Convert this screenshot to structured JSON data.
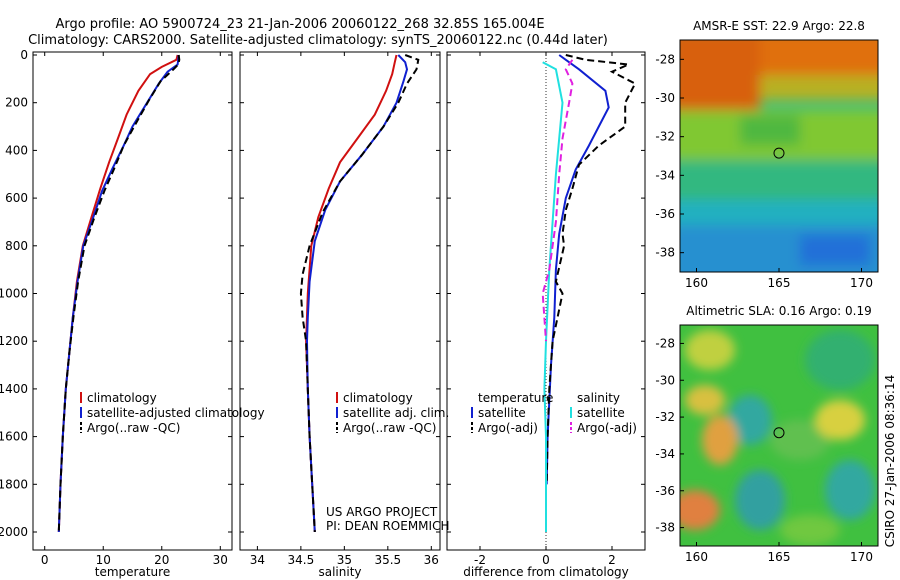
{
  "title": {
    "line1": "Argo profile: AO 5900724_23 21-Jan-2006 20060122_268 32.85S 165.004E",
    "line2": "Climatology: CARS2000. Satellite-adjusted climatology: synTS_20060122.nc (0.44d later)"
  },
  "side_label": "CSIRO 27-Jan-2006 08:36:14",
  "project_text": [
    "US ARGO PROJECT",
    "PI: DEAN ROEMMICH"
  ],
  "colors": {
    "climatology": "#d01010",
    "satellite": "#1020d0",
    "argo": "#000000",
    "cyan": "#20e0e0",
    "magenta": "#e020e0"
  },
  "chart_data": [
    {
      "type": "line",
      "xlabel": "temperature",
      "xlim": [
        -2,
        32
      ],
      "xticks": [
        0,
        10,
        20,
        30
      ],
      "ylim": [
        0,
        2050
      ],
      "yticks": [
        0,
        200,
        400,
        600,
        800,
        1000,
        1200,
        1400,
        1600,
        1800,
        2000
      ],
      "y_reversed": true,
      "legend_location": "lower-center",
      "series": [
        {
          "name": "climatology",
          "style": "solid",
          "color_key": "climatology",
          "points": [
            [
              22.7,
              0
            ],
            [
              22.5,
              20
            ],
            [
              20.0,
              50
            ],
            [
              18.0,
              80
            ],
            [
              16.0,
              150
            ],
            [
              14.0,
              250
            ],
            [
              12.5,
              350
            ],
            [
              11.0,
              450
            ],
            [
              9.5,
              560
            ],
            [
              8.0,
              680
            ],
            [
              6.5,
              800
            ],
            [
              5.5,
              950
            ],
            [
              4.8,
              1100
            ],
            [
              4.2,
              1250
            ],
            [
              3.6,
              1400
            ],
            [
              3.1,
              1600
            ],
            [
              2.7,
              1800
            ],
            [
              2.4,
              2000
            ]
          ]
        },
        {
          "name": "satellite-adjusted climatology",
          "style": "solid",
          "color_key": "satellite",
          "points": [
            [
              22.9,
              0
            ],
            [
              22.8,
              20
            ],
            [
              22.7,
              40
            ],
            [
              21.0,
              70
            ],
            [
              19.5,
              120
            ],
            [
              17.5,
              200
            ],
            [
              15.0,
              300
            ],
            [
              13.5,
              380
            ],
            [
              11.5,
              480
            ],
            [
              9.8,
              570
            ],
            [
              8.3,
              680
            ],
            [
              6.6,
              800
            ],
            [
              5.6,
              950
            ],
            [
              4.8,
              1100
            ],
            [
              4.2,
              1250
            ],
            [
              3.6,
              1400
            ],
            [
              3.1,
              1600
            ],
            [
              2.7,
              1800
            ],
            [
              2.4,
              2000
            ]
          ]
        },
        {
          "name": "Argo(..raw -QC)",
          "style": "dashed",
          "color_key": "argo",
          "points": [
            [
              22.9,
              0
            ],
            [
              23.0,
              20
            ],
            [
              22.8,
              40
            ],
            [
              22.0,
              60
            ],
            [
              19.8,
              110
            ],
            [
              17.8,
              190
            ],
            [
              15.5,
              290
            ],
            [
              13.5,
              380
            ],
            [
              11.8,
              480
            ],
            [
              10.2,
              570
            ],
            [
              8.5,
              680
            ],
            [
              6.8,
              800
            ],
            [
              5.7,
              950
            ],
            [
              4.9,
              1100
            ],
            [
              4.2,
              1250
            ],
            [
              3.6,
              1400
            ],
            [
              3.1,
              1600
            ],
            [
              2.7,
              1800
            ],
            [
              2.4,
              2000
            ]
          ]
        }
      ]
    },
    {
      "type": "line",
      "xlabel": "salinity",
      "xlim": [
        33.8,
        36.1
      ],
      "xticks": [
        34,
        34.5,
        35,
        35.5,
        36
      ],
      "ylim": [
        0,
        2050
      ],
      "y_reversed": true,
      "legend_location": "lower-center",
      "series": [
        {
          "name": "climatology",
          "style": "solid",
          "color_key": "climatology",
          "points": [
            [
              35.6,
              0
            ],
            [
              35.58,
              30
            ],
            [
              35.55,
              80
            ],
            [
              35.48,
              150
            ],
            [
              35.35,
              250
            ],
            [
              35.15,
              350
            ],
            [
              34.95,
              450
            ],
            [
              34.82,
              560
            ],
            [
              34.7,
              680
            ],
            [
              34.62,
              800
            ],
            [
              34.58,
              1000
            ],
            [
              34.56,
              1200
            ],
            [
              34.58,
              1400
            ],
            [
              34.6,
              1600
            ],
            [
              34.63,
              1800
            ],
            [
              34.66,
              2000
            ]
          ]
        },
        {
          "name": "satellite adj. clim.",
          "style": "solid",
          "color_key": "satellite",
          "points": [
            [
              35.62,
              0
            ],
            [
              35.7,
              30
            ],
            [
              35.72,
              60
            ],
            [
              35.68,
              110
            ],
            [
              35.6,
              200
            ],
            [
              35.45,
              300
            ],
            [
              35.2,
              420
            ],
            [
              34.95,
              530
            ],
            [
              34.78,
              650
            ],
            [
              34.66,
              780
            ],
            [
              34.6,
              950
            ],
            [
              34.58,
              1100
            ],
            [
              34.57,
              1200
            ],
            [
              34.58,
              1400
            ],
            [
              34.6,
              1600
            ],
            [
              34.63,
              1800
            ],
            [
              34.66,
              2000
            ]
          ]
        },
        {
          "name": "Argo(..raw -QC)",
          "style": "dashed",
          "color_key": "argo",
          "points": [
            [
              35.7,
              0
            ],
            [
              35.85,
              20
            ],
            [
              35.83,
              60
            ],
            [
              35.72,
              120
            ],
            [
              35.62,
              200
            ],
            [
              35.45,
              300
            ],
            [
              35.2,
              420
            ],
            [
              34.95,
              530
            ],
            [
              34.75,
              660
            ],
            [
              34.6,
              800
            ],
            [
              34.52,
              920
            ],
            [
              34.5,
              1000
            ],
            [
              34.52,
              1100
            ],
            [
              34.56,
              1200
            ],
            [
              34.58,
              1400
            ],
            [
              34.6,
              1600
            ],
            [
              34.63,
              1800
            ],
            [
              34.66,
              2000
            ]
          ]
        }
      ]
    },
    {
      "type": "line",
      "xlabel": "difference from climatology",
      "xlim": [
        -3,
        3
      ],
      "xticks": [
        -2,
        0,
        2
      ],
      "ylim": [
        0,
        2050
      ],
      "y_reversed": true,
      "legend_location": "lower-center",
      "legend_groups": [
        {
          "heading": "temperature",
          "entries": [
            "satellite",
            "Argo(-adj)"
          ]
        },
        {
          "heading": "salinity",
          "entries": [
            "satellite",
            "Argo(-adj)"
          ]
        }
      ],
      "series": [
        {
          "name": "satellite",
          "group": "temperature",
          "style": "solid",
          "color_key": "satellite",
          "points": [
            [
              0.4,
              0
            ],
            [
              0.6,
              20
            ],
            [
              1.0,
              60
            ],
            [
              1.8,
              150
            ],
            [
              1.9,
              220
            ],
            [
              1.6,
              300
            ],
            [
              1.3,
              380
            ],
            [
              0.9,
              480
            ],
            [
              0.6,
              600
            ],
            [
              0.4,
              750
            ],
            [
              0.3,
              900
            ],
            [
              0.25,
              1100
            ],
            [
              0.15,
              1300
            ],
            [
              0.05,
              1600
            ],
            [
              0.02,
              1800
            ]
          ]
        },
        {
          "name": "Argo(-adj)",
          "group": "temperature",
          "style": "dashed",
          "color_key": "argo",
          "points": [
            [
              0.6,
              0
            ],
            [
              1.2,
              20
            ],
            [
              2.5,
              40
            ],
            [
              2.0,
              70
            ],
            [
              2.7,
              120
            ],
            [
              2.4,
              200
            ],
            [
              2.4,
              300
            ],
            [
              1.6,
              380
            ],
            [
              1.0,
              460
            ],
            [
              0.8,
              560
            ],
            [
              0.6,
              650
            ],
            [
              0.5,
              750
            ],
            [
              0.55,
              800
            ],
            [
              0.3,
              950
            ],
            [
              0.5,
              1000
            ],
            [
              0.2,
              1200
            ],
            [
              0.1,
              1400
            ],
            [
              0.05,
              1600
            ],
            [
              0.02,
              1800
            ]
          ]
        },
        {
          "name": "satellite",
          "group": "salinity",
          "style": "solid",
          "color_key": "cyan",
          "points": [
            [
              -0.1,
              30
            ],
            [
              0.3,
              60
            ],
            [
              0.5,
              200
            ],
            [
              0.4,
              350
            ],
            [
              0.3,
              500
            ],
            [
              0.2,
              700
            ],
            [
              0.1,
              900
            ],
            [
              0,
              1200
            ],
            [
              -0.05,
              1400
            ],
            [
              0,
              1600
            ],
            [
              0,
              1800
            ],
            [
              0,
              2000
            ]
          ]
        },
        {
          "name": "Argo(-adj)",
          "group": "salinity",
          "style": "dashed",
          "color_key": "magenta",
          "points": [
            [
              0.8,
              20
            ],
            [
              0.6,
              60
            ],
            [
              0.8,
              120
            ],
            [
              0.7,
              200
            ],
            [
              0.5,
              350
            ],
            [
              0.4,
              500
            ],
            [
              0.3,
              700
            ],
            [
              0.1,
              900
            ],
            [
              -0.1,
              1000
            ],
            [
              0,
              1200
            ]
          ]
        }
      ]
    },
    {
      "type": "heatmap",
      "title": "AMSR-E SST: 22.9 Argo: 22.8",
      "xlim": [
        159,
        171
      ],
      "xticks": [
        160,
        165,
        170
      ],
      "ylim": [
        -39,
        -27
      ],
      "yticks": [
        -28,
        -30,
        -32,
        -34,
        -36,
        -38
      ],
      "marker": [
        165,
        -32.85
      ]
    },
    {
      "type": "heatmap",
      "title": "Altimetric SLA: 0.16 Argo: 0.19",
      "xlim": [
        159,
        171
      ],
      "xticks": [
        160,
        165,
        170
      ],
      "ylim": [
        -39,
        -27
      ],
      "yticks": [
        -28,
        -30,
        -32,
        -34,
        -36,
        -38
      ],
      "marker": [
        165,
        -32.85
      ]
    }
  ]
}
